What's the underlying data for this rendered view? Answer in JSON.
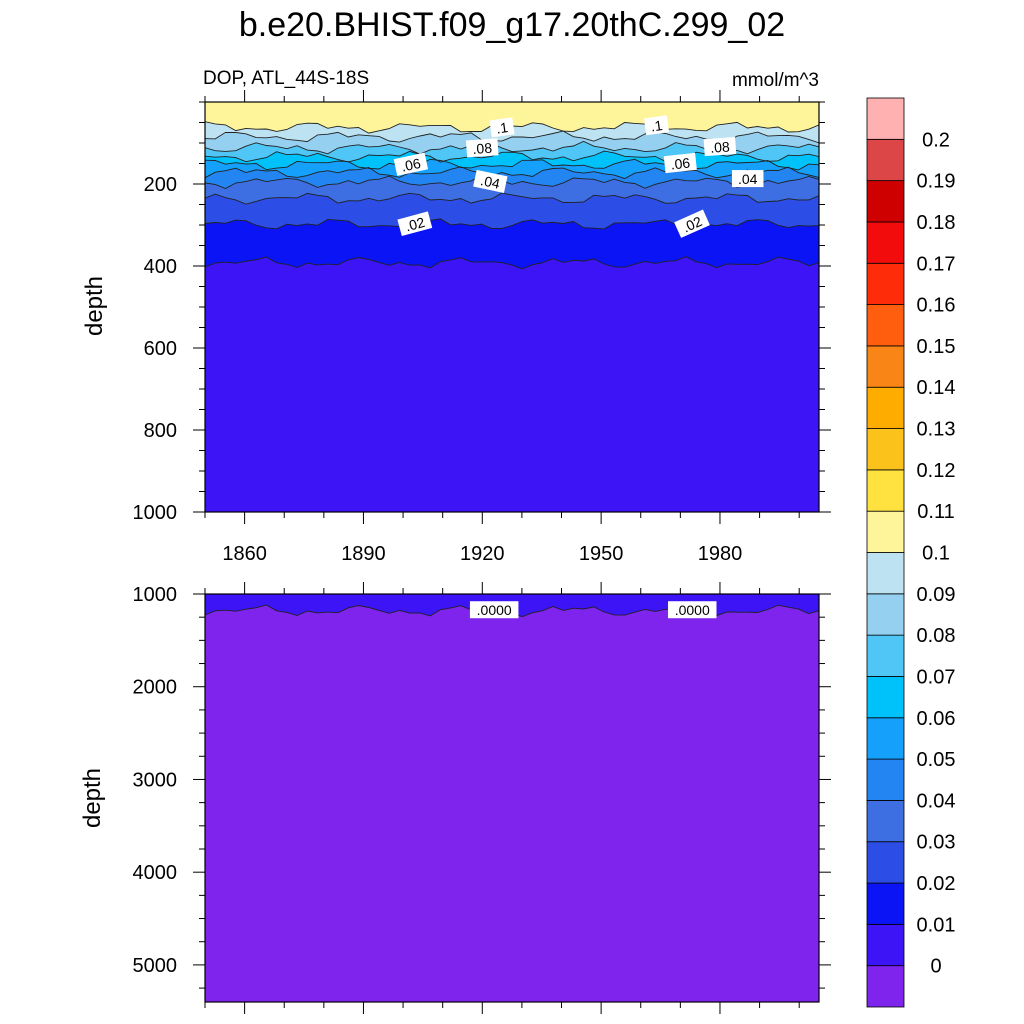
{
  "chart_data": {
    "type": "heatmap",
    "title": "b.e20.BHIST.f09_g17.20thC.299_02",
    "subtitle_left": "DOP, ATL_44S-18S",
    "subtitle_right": "mmol/m^3",
    "x_tick_labels": [
      "1860",
      "1890",
      "1920",
      "1950",
      "1980"
    ],
    "x_ticks": [
      1860,
      1890,
      1920,
      1950,
      1980
    ],
    "xlim": [
      1850,
      2005
    ],
    "panels": [
      {
        "name": "upper",
        "ylabel": "depth",
        "ylim": [
          0,
          1000
        ],
        "y_ticks": [
          200,
          400,
          600,
          800,
          1000
        ],
        "y_tick_labels": [
          "200",
          "400",
          "600",
          "800",
          "1000"
        ],
        "contour_labels": [
          {
            "text": ".1",
            "x": 1925,
            "y": 63,
            "angle": -8
          },
          {
            "text": ".1",
            "x": 1964,
            "y": 58,
            "angle": -8
          },
          {
            "text": ".08",
            "x": 1920,
            "y": 113,
            "angle": -4
          },
          {
            "text": ".08",
            "x": 1980,
            "y": 110,
            "angle": -4
          },
          {
            "text": ".06",
            "x": 1902,
            "y": 153,
            "angle": -12
          },
          {
            "text": ".06",
            "x": 1970,
            "y": 150,
            "angle": -6
          },
          {
            "text": ".04",
            "x": 1922,
            "y": 195,
            "angle": 12
          },
          {
            "text": ".04",
            "x": 1987,
            "y": 188,
            "angle": 0
          },
          {
            "text": ".02",
            "x": 1903,
            "y": 298,
            "angle": -15
          },
          {
            "text": ".02",
            "x": 1973,
            "y": 298,
            "angle": -24
          }
        ]
      },
      {
        "name": "lower",
        "ylabel": "depth",
        "ylim": [
          1000,
          5400
        ],
        "y_ticks": [
          1000,
          2000,
          3000,
          4000,
          5000
        ],
        "y_tick_labels": [
          "1000",
          "2000",
          "3000",
          "4000",
          "5000"
        ],
        "contour_labels": [
          {
            "text": ".0000",
            "x": 1923,
            "y": 1175,
            "angle": 0
          },
          {
            "text": ".0000",
            "x": 1973,
            "y": 1175,
            "angle": 0
          }
        ]
      }
    ],
    "colorbar": {
      "levels": [
        "0",
        "0.01",
        "0.02",
        "0.03",
        "0.04",
        "0.05",
        "0.06",
        "0.07",
        "0.08",
        "0.09",
        "0.1",
        "0.11",
        "0.12",
        "0.13",
        "0.14",
        "0.15",
        "0.16",
        "0.17",
        "0.18",
        "0.19",
        "0.2"
      ],
      "colors": [
        "#7f24ec",
        "#3c14f5",
        "#0a14f5",
        "#2c4de6",
        "#3d6fe3",
        "#2385f2",
        "#14a0fb",
        "#00c2fb",
        "#50c6f6",
        "#96d0f0",
        "#bde3f2",
        "#fef49a",
        "#ffe140",
        "#fbc21c",
        "#ffac00",
        "#fa8517",
        "#fe5e0d",
        "#ff2c0a",
        "#f20c0c",
        "#ce0000",
        "#dd4646",
        "#ffb1b1"
      ]
    },
    "contour_levels_upper": [
      {
        "value": 0.1,
        "color": "#bde3f2",
        "mean_depth": 62
      },
      {
        "value": 0.09,
        "color": "#96d0f0",
        "mean_depth": 85
      },
      {
        "value": 0.08,
        "color": "#50c6f6",
        "mean_depth": 112
      },
      {
        "value": 0.07,
        "color": "#00c2fb",
        "mean_depth": 133
      },
      {
        "value": 0.06,
        "color": "#14a0fb",
        "mean_depth": 152
      },
      {
        "value": 0.05,
        "color": "#2385f2",
        "mean_depth": 172
      },
      {
        "value": 0.04,
        "color": "#3d6fe3",
        "mean_depth": 195
      },
      {
        "value": 0.03,
        "color": "#2c4de6",
        "mean_depth": 235
      },
      {
        "value": 0.02,
        "color": "#0a14f5",
        "mean_depth": 298
      },
      {
        "value": 0.01,
        "color": "#3c14f5",
        "mean_depth": 392
      }
    ],
    "contour_level_lower": {
      "value": 0.0,
      "color": "#7f24ec",
      "mean_depth": 1180
    }
  }
}
